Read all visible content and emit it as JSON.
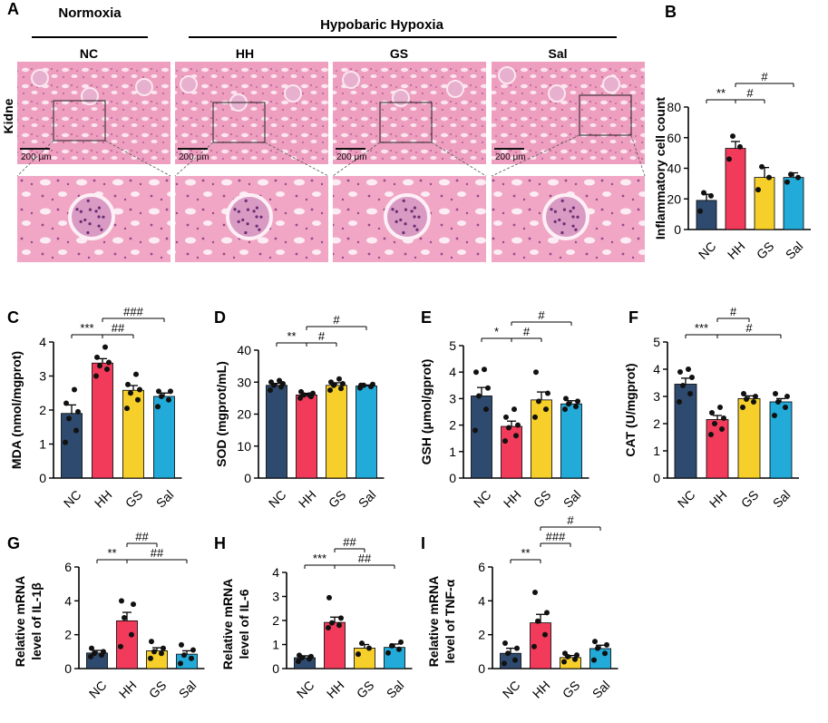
{
  "figure": {
    "panel_A": {
      "letter": "A",
      "group_normoxia": "Normoxia",
      "group_hypoxia": "Hypobaric Hypoxia",
      "tissue_label": "Kidne",
      "scale_bar": "200 μm",
      "groups": [
        "NC",
        "HH",
        "GS",
        "Sal"
      ]
    }
  },
  "colors": {
    "NC": "#2e4a6e",
    "HH": "#f23b5a",
    "GS": "#f6cf2a",
    "Sal": "#22aad8",
    "tissue": "#ee9fc0",
    "tissue_dark": "#d9739f"
  },
  "chart_data": [
    {
      "id": "B",
      "letter": "B",
      "type": "bar",
      "categories": [
        "NC",
        "HH",
        "GS",
        "Sal"
      ],
      "values": [
        19,
        53,
        34,
        34
      ],
      "errors": [
        4,
        4.5,
        6.5,
        3
      ],
      "points": [
        [
          12,
          22,
          24
        ],
        [
          46,
          54,
          61
        ],
        [
          26,
          34,
          41
        ],
        [
          31,
          34,
          36
        ]
      ],
      "ylabel": "Inflammatory cell count",
      "ylim": [
        0,
        80
      ],
      "yticks": [
        "0",
        "20",
        "40",
        "60",
        "80"
      ],
      "sig": [
        {
          "from": 0,
          "to": 1,
          "label": "**",
          "level": 1
        },
        {
          "from": 1,
          "to": 2,
          "label": "#",
          "level": 1
        },
        {
          "from": 1,
          "to": 3,
          "label": "#",
          "level": 2
        }
      ]
    },
    {
      "id": "C",
      "letter": "C",
      "type": "bar",
      "categories": [
        "NC",
        "HH",
        "GS",
        "Sal"
      ],
      "values": [
        1.9,
        3.38,
        2.58,
        2.4
      ],
      "errors": [
        0.25,
        0.13,
        0.14,
        0.1
      ],
      "points": [
        [
          1.05,
          1.4,
          1.75,
          1.95,
          2.2,
          2.6
        ],
        [
          3.0,
          3.2,
          3.3,
          3.4,
          3.55,
          3.85
        ],
        [
          2.05,
          2.3,
          2.5,
          2.6,
          2.75,
          3.05
        ],
        [
          2.1,
          2.3,
          2.4,
          2.55,
          2.55
        ]
      ],
      "ylabel": "MDA (nmol/mgprot)",
      "ylim": [
        0,
        4
      ],
      "yticks": [
        "0",
        "1",
        "2",
        "3",
        "4"
      ],
      "sig": [
        {
          "from": 0,
          "to": 1,
          "label": "***",
          "level": 1
        },
        {
          "from": 1,
          "to": 2,
          "label": "##",
          "level": 1
        },
        {
          "from": 1,
          "to": 3,
          "label": "###",
          "level": 2
        }
      ]
    },
    {
      "id": "D",
      "letter": "D",
      "type": "bar",
      "categories": [
        "NC",
        "HH",
        "GS",
        "Sal"
      ],
      "values": [
        29,
        26,
        29,
        28.8
      ],
      "errors": [
        0.6,
        0.5,
        0.8,
        0.3
      ],
      "points": [
        [
          27.5,
          28.5,
          29,
          29.5,
          30,
          30.5
        ],
        [
          25,
          25.5,
          26,
          26.5,
          27,
          26
        ],
        [
          27.5,
          28,
          29,
          29.5,
          30,
          31
        ],
        [
          28.2,
          28.6,
          29,
          29.3,
          29
        ]
      ],
      "ylabel": "SOD (mgprot/mL)",
      "ylim": [
        0,
        40
      ],
      "yticks": [
        "0",
        "10",
        "20",
        "30",
        "40"
      ],
      "sig": [
        {
          "from": 0,
          "to": 1,
          "label": "**",
          "level": 1
        },
        {
          "from": 1,
          "to": 2,
          "label": "#",
          "level": 1
        },
        {
          "from": 1,
          "to": 3,
          "label": "#",
          "level": 2
        }
      ]
    },
    {
      "id": "E",
      "letter": "E",
      "type": "bar",
      "categories": [
        "NC",
        "HH",
        "GS",
        "Sal"
      ],
      "values": [
        3.1,
        1.95,
        2.95,
        2.8
      ],
      "errors": [
        0.32,
        0.2,
        0.3,
        0.12
      ],
      "points": [
        [
          1.8,
          2.6,
          3.1,
          3.4,
          4.0,
          4.1
        ],
        [
          1.4,
          1.6,
          1.9,
          2.0,
          2.3,
          2.6
        ],
        [
          2.3,
          2.6,
          2.9,
          3.2,
          4.0
        ],
        [
          2.6,
          2.7,
          2.8,
          2.9,
          3.0
        ]
      ],
      "ylabel": "GSH (μmol/gprot)",
      "ylim": [
        0,
        5
      ],
      "yticks": [
        "0",
        "1",
        "2",
        "3",
        "4",
        "5"
      ],
      "sig": [
        {
          "from": 0,
          "to": 1,
          "label": "*",
          "level": 1
        },
        {
          "from": 1,
          "to": 2,
          "label": "#",
          "level": 1
        },
        {
          "from": 1,
          "to": 3,
          "label": "#",
          "level": 2
        }
      ]
    },
    {
      "id": "F",
      "letter": "F",
      "type": "bar",
      "categories": [
        "NC",
        "HH",
        "GS",
        "Sal"
      ],
      "values": [
        3.45,
        2.15,
        2.92,
        2.8
      ],
      "errors": [
        0.22,
        0.15,
        0.1,
        0.12
      ],
      "points": [
        [
          2.8,
          3.1,
          3.4,
          3.7,
          3.9,
          4.0
        ],
        [
          1.6,
          1.8,
          2.0,
          2.2,
          2.4,
          2.6
        ],
        [
          2.6,
          2.8,
          2.9,
          3.0,
          3.1
        ],
        [
          2.3,
          2.6,
          2.8,
          3.0,
          3.1
        ]
      ],
      "ylabel": "CAT (U/mgprot)",
      "ylim": [
        0,
        5
      ],
      "yticks": [
        "0",
        "1",
        "2",
        "3",
        "4",
        "5"
      ],
      "sig": [
        {
          "from": 0,
          "to": 1,
          "label": "***",
          "level": 1
        },
        {
          "from": 1,
          "to": 3,
          "label": "#",
          "level": 1
        },
        {
          "from": 1,
          "to": 2,
          "label": "#",
          "level": 2
        }
      ]
    },
    {
      "id": "G",
      "letter": "G",
      "type": "bar",
      "categories": [
        "NC",
        "HH",
        "GS",
        "Sal"
      ],
      "values": [
        0.92,
        2.82,
        1.05,
        0.85
      ],
      "errors": [
        0.15,
        0.5,
        0.18,
        0.2
      ],
      "points": [
        [
          0.7,
          0.8,
          0.9,
          1.0,
          1.2
        ],
        [
          1.3,
          2.0,
          3.0,
          3.8,
          4.0
        ],
        [
          0.6,
          0.9,
          1.0,
          1.2,
          1.6
        ],
        [
          0.3,
          0.6,
          0.8,
          1.1,
          1.4
        ]
      ],
      "ylabel_lines": [
        "Relative mRNA",
        "level of IL-1β"
      ],
      "ylim": [
        0,
        6
      ],
      "yticks": [
        "0",
        "2",
        "4",
        "6"
      ],
      "sig": [
        {
          "from": 0,
          "to": 1,
          "label": "**",
          "level": 1
        },
        {
          "from": 1,
          "to": 2,
          "label": "##",
          "level": 2
        },
        {
          "from": 1,
          "to": 3,
          "label": "##",
          "level": 1
        }
      ]
    },
    {
      "id": "H",
      "letter": "H",
      "type": "bar",
      "categories": [
        "NC",
        "HH",
        "GS",
        "Sal"
      ],
      "values": [
        0.45,
        1.92,
        0.85,
        0.88
      ],
      "errors": [
        0.08,
        0.22,
        0.15,
        0.14
      ],
      "points": [
        [
          0.3,
          0.4,
          0.45,
          0.5,
          0.55
        ],
        [
          1.7,
          1.8,
          1.9,
          2.1,
          2.95
        ],
        [
          0.6,
          0.85,
          1.05
        ],
        [
          0.65,
          0.8,
          0.95,
          1.1
        ]
      ],
      "ylabel_lines": [
        "Relative mRNA",
        "level of IL-6"
      ],
      "ylim": [
        0,
        4
      ],
      "yticks": [
        "0",
        "1",
        "2",
        "3",
        "4"
      ],
      "sig": [
        {
          "from": 0,
          "to": 1,
          "label": "***",
          "level": 1
        },
        {
          "from": 1,
          "to": 2,
          "label": "##",
          "level": 2
        },
        {
          "from": 1,
          "to": 3,
          "label": "##",
          "level": 1
        }
      ]
    },
    {
      "id": "I",
      "letter": "I",
      "type": "bar",
      "categories": [
        "NC",
        "HH",
        "GS",
        "Sal"
      ],
      "values": [
        0.9,
        2.7,
        0.65,
        1.18
      ],
      "errors": [
        0.3,
        0.5,
        0.12,
        0.2
      ],
      "points": [
        [
          0.3,
          0.5,
          0.9,
          1.2,
          1.5
        ],
        [
          1.3,
          2.0,
          2.8,
          3.3,
          4.5
        ],
        [
          0.4,
          0.55,
          0.7,
          0.8,
          0.9
        ],
        [
          0.5,
          0.9,
          1.2,
          1.4,
          1.6
        ]
      ],
      "ylabel_lines": [
        "Relative mRNA",
        "level of TNF-α"
      ],
      "ylim": [
        0,
        6
      ],
      "yticks": [
        "0",
        "2",
        "4",
        "6"
      ],
      "sig": [
        {
          "from": 0,
          "to": 1,
          "label": "**",
          "level": 1
        },
        {
          "from": 1,
          "to": 2,
          "label": "###",
          "level": 2
        },
        {
          "from": 1,
          "to": 3,
          "label": "#",
          "level": 3
        }
      ]
    }
  ]
}
